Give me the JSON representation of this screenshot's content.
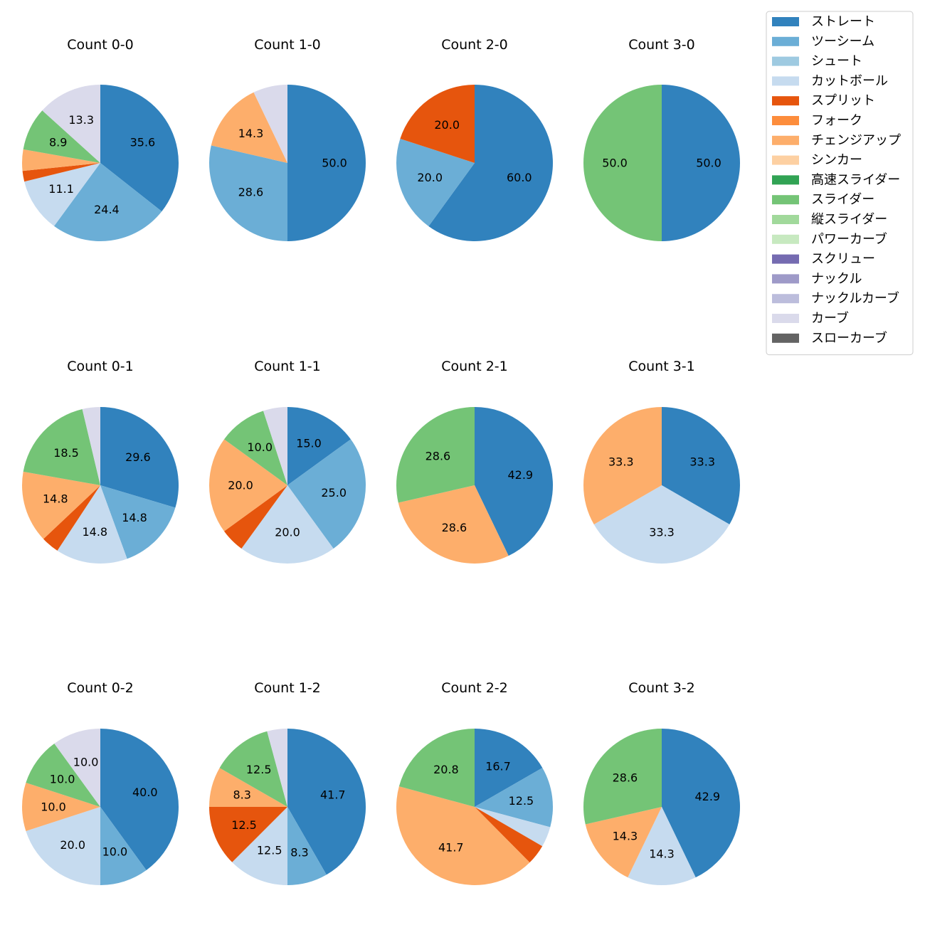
{
  "chart_data": {
    "type": "pie",
    "legend": {
      "location": "top-right",
      "entries": [
        {
          "name": "ストレート",
          "color": "#3182bd"
        },
        {
          "name": "ツーシーム",
          "color": "#6baed6"
        },
        {
          "name": "シュート",
          "color": "#9ecae1"
        },
        {
          "name": "カットボール",
          "color": "#c6dbef"
        },
        {
          "name": "スプリット",
          "color": "#e6550d"
        },
        {
          "name": "フォーク",
          "color": "#fd8d3c"
        },
        {
          "name": "チェンジアップ",
          "color": "#fdae6b"
        },
        {
          "name": "シンカー",
          "color": "#fdd0a2"
        },
        {
          "name": "高速スライダー",
          "color": "#31a354"
        },
        {
          "name": "スライダー",
          "color": "#74c476"
        },
        {
          "name": "縦スライダー",
          "color": "#a1d99b"
        },
        {
          "name": "パワーカーブ",
          "color": "#c7e9c0"
        },
        {
          "name": "スクリュー",
          "color": "#756bb1"
        },
        {
          "name": "ナックル",
          "color": "#9e9ac8"
        },
        {
          "name": "ナックルカーブ",
          "color": "#bcbddc"
        },
        {
          "name": "カーブ",
          "color": "#dadaeb"
        },
        {
          "name": "スローカーブ",
          "color": "#636363"
        }
      ]
    },
    "pies": [
      {
        "title": "Count 0-0",
        "slices": [
          {
            "type": "ストレート",
            "value": 35.6,
            "label": "35.6"
          },
          {
            "type": "ツーシーム",
            "value": 24.4,
            "label": "24.4"
          },
          {
            "type": "カットボール",
            "value": 11.1,
            "label": "11.1"
          },
          {
            "type": "スプリット",
            "value": 2.2,
            "label": ""
          },
          {
            "type": "チェンジアップ",
            "value": 4.4,
            "label": ""
          },
          {
            "type": "スライダー",
            "value": 8.9,
            "label": "8.9"
          },
          {
            "type": "カーブ",
            "value": 13.3,
            "label": "13.3"
          }
        ]
      },
      {
        "title": "Count 1-0",
        "slices": [
          {
            "type": "ストレート",
            "value": 50.0,
            "label": "50.0"
          },
          {
            "type": "ツーシーム",
            "value": 28.6,
            "label": "28.6"
          },
          {
            "type": "チェンジアップ",
            "value": 14.3,
            "label": "14.3"
          },
          {
            "type": "カーブ",
            "value": 7.1,
            "label": ""
          }
        ]
      },
      {
        "title": "Count 2-0",
        "slices": [
          {
            "type": "ストレート",
            "value": 60.0,
            "label": "60.0"
          },
          {
            "type": "ツーシーム",
            "value": 20.0,
            "label": "20.0"
          },
          {
            "type": "スプリット",
            "value": 20.0,
            "label": "20.0"
          }
        ]
      },
      {
        "title": "Count 3-0",
        "slices": [
          {
            "type": "ストレート",
            "value": 50.0,
            "label": "50.0"
          },
          {
            "type": "スライダー",
            "value": 50.0,
            "label": "50.0"
          }
        ]
      },
      {
        "title": "Count 0-1",
        "slices": [
          {
            "type": "ストレート",
            "value": 29.6,
            "label": "29.6"
          },
          {
            "type": "ツーシーム",
            "value": 14.8,
            "label": "14.8"
          },
          {
            "type": "カットボール",
            "value": 14.8,
            "label": "14.8"
          },
          {
            "type": "スプリット",
            "value": 3.7,
            "label": ""
          },
          {
            "type": "チェンジアップ",
            "value": 14.8,
            "label": "14.8"
          },
          {
            "type": "スライダー",
            "value": 18.5,
            "label": "18.5"
          },
          {
            "type": "カーブ",
            "value": 3.7,
            "label": ""
          }
        ]
      },
      {
        "title": "Count 1-1",
        "slices": [
          {
            "type": "ストレート",
            "value": 15.0,
            "label": "15.0"
          },
          {
            "type": "ツーシーム",
            "value": 25.0,
            "label": "25.0"
          },
          {
            "type": "カットボール",
            "value": 20.0,
            "label": "20.0"
          },
          {
            "type": "スプリット",
            "value": 5.0,
            "label": ""
          },
          {
            "type": "チェンジアップ",
            "value": 20.0,
            "label": "20.0"
          },
          {
            "type": "スライダー",
            "value": 10.0,
            "label": "10.0"
          },
          {
            "type": "カーブ",
            "value": 5.0,
            "label": ""
          }
        ]
      },
      {
        "title": "Count 2-1",
        "slices": [
          {
            "type": "ストレート",
            "value": 42.9,
            "label": "42.9"
          },
          {
            "type": "チェンジアップ",
            "value": 28.6,
            "label": "28.6"
          },
          {
            "type": "スライダー",
            "value": 28.6,
            "label": "28.6"
          }
        ]
      },
      {
        "title": "Count 3-1",
        "slices": [
          {
            "type": "ストレート",
            "value": 33.3,
            "label": "33.3"
          },
          {
            "type": "カットボール",
            "value": 33.3,
            "label": "33.3"
          },
          {
            "type": "チェンジアップ",
            "value": 33.3,
            "label": "33.3"
          }
        ]
      },
      {
        "title": "Count 0-2",
        "slices": [
          {
            "type": "ストレート",
            "value": 40.0,
            "label": "40.0"
          },
          {
            "type": "ツーシーム",
            "value": 10.0,
            "label": "10.0"
          },
          {
            "type": "カットボール",
            "value": 20.0,
            "label": "20.0"
          },
          {
            "type": "チェンジアップ",
            "value": 10.0,
            "label": "10.0"
          },
          {
            "type": "スライダー",
            "value": 10.0,
            "label": "10.0"
          },
          {
            "type": "カーブ",
            "value": 10.0,
            "label": "10.0"
          }
        ]
      },
      {
        "title": "Count 1-2",
        "slices": [
          {
            "type": "ストレート",
            "value": 41.7,
            "label": "41.7"
          },
          {
            "type": "ツーシーム",
            "value": 8.3,
            "label": "8.3"
          },
          {
            "type": "カットボール",
            "value": 12.5,
            "label": "12.5"
          },
          {
            "type": "スプリット",
            "value": 12.5,
            "label": "12.5"
          },
          {
            "type": "チェンジアップ",
            "value": 8.3,
            "label": "8.3"
          },
          {
            "type": "スライダー",
            "value": 12.5,
            "label": "12.5"
          },
          {
            "type": "カーブ",
            "value": 4.2,
            "label": ""
          }
        ]
      },
      {
        "title": "Count 2-2",
        "slices": [
          {
            "type": "ストレート",
            "value": 16.7,
            "label": "16.7"
          },
          {
            "type": "ツーシーム",
            "value": 12.5,
            "label": "12.5"
          },
          {
            "type": "カットボール",
            "value": 4.2,
            "label": ""
          },
          {
            "type": "スプリット",
            "value": 4.2,
            "label": ""
          },
          {
            "type": "チェンジアップ",
            "value": 41.7,
            "label": "41.7"
          },
          {
            "type": "スライダー",
            "value": 20.8,
            "label": "20.8"
          }
        ]
      },
      {
        "title": "Count 3-2",
        "slices": [
          {
            "type": "ストレート",
            "value": 42.9,
            "label": "42.9"
          },
          {
            "type": "カットボール",
            "value": 14.3,
            "label": "14.3"
          },
          {
            "type": "チェンジアップ",
            "value": 14.3,
            "label": "14.3"
          },
          {
            "type": "スライダー",
            "value": 28.6,
            "label": "28.6"
          }
        ]
      }
    ]
  }
}
